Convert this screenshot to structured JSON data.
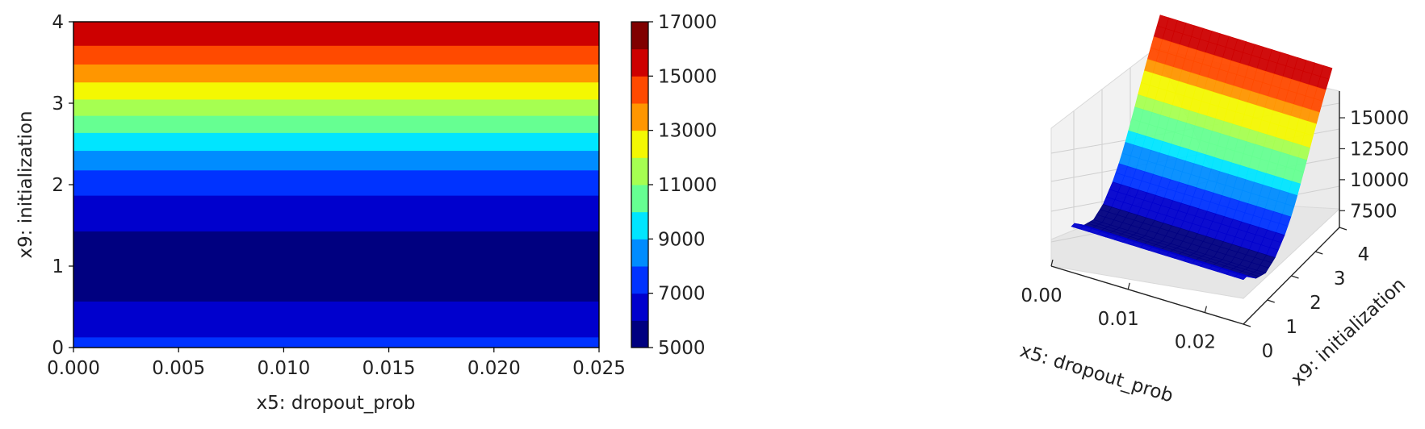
{
  "chart_data": [
    {
      "type": "contour",
      "xlabel": "x5: dropout_prob",
      "ylabel": "x9: initialization",
      "xlim": [
        0,
        0.025
      ],
      "ylim": [
        0,
        4
      ],
      "x_ticks": [
        "0.000",
        "0.005",
        "0.010",
        "0.015",
        "0.020",
        "0.025"
      ],
      "y_ticks": [
        "0",
        "1",
        "2",
        "3",
        "4"
      ],
      "colorbar_ticks": [
        "5000",
        "7000",
        "9000",
        "11000",
        "13000",
        "15000",
        "17000"
      ],
      "levels": [
        5000,
        6000,
        7000,
        8000,
        9000,
        10000,
        11000,
        12000,
        13000,
        14000,
        15000,
        16000,
        17000
      ],
      "level_colors": [
        "#000080",
        "#0000cd",
        "#0033ff",
        "#008cff",
        "#00e5ff",
        "#66ff92",
        "#a6ff51",
        "#f4f802",
        "#ff9600",
        "#ff4a00",
        "#cd0000",
        "#800000"
      ],
      "bands": [
        {
          "y0": 0.0,
          "y1": 0.13,
          "level": 2
        },
        {
          "y0": 0.13,
          "y1": 0.57,
          "level": 1
        },
        {
          "y0": 0.57,
          "y1": 1.43,
          "level": 0
        },
        {
          "y0": 1.43,
          "y1": 1.87,
          "level": 1
        },
        {
          "y0": 1.87,
          "y1": 2.18,
          "level": 2
        },
        {
          "y0": 2.18,
          "y1": 2.42,
          "level": 3
        },
        {
          "y0": 2.42,
          "y1": 2.64,
          "level": 4
        },
        {
          "y0": 2.64,
          "y1": 2.85,
          "level": 5
        },
        {
          "y0": 2.85,
          "y1": 3.05,
          "level": 6
        },
        {
          "y0": 3.05,
          "y1": 3.26,
          "level": 7
        },
        {
          "y0": 3.26,
          "y1": 3.48,
          "level": 8
        },
        {
          "y0": 3.48,
          "y1": 3.71,
          "level": 9
        },
        {
          "y0": 3.71,
          "y1": 4.0,
          "level": 10
        }
      ]
    },
    {
      "type": "surface3d",
      "xlabel": "x5: dropout_prob",
      "ylabel": "x9: initialization",
      "x_ticks": [
        "0.00",
        "0.01",
        "0.02"
      ],
      "y_ticks": [
        "0",
        "1",
        "2",
        "3",
        "4"
      ],
      "z_ticks": [
        "7500",
        "10000",
        "12500",
        "15000"
      ],
      "xlim": [
        0,
        0.025
      ],
      "ylim": [
        0,
        4
      ],
      "zlim": [
        5500,
        16500
      ]
    }
  ]
}
